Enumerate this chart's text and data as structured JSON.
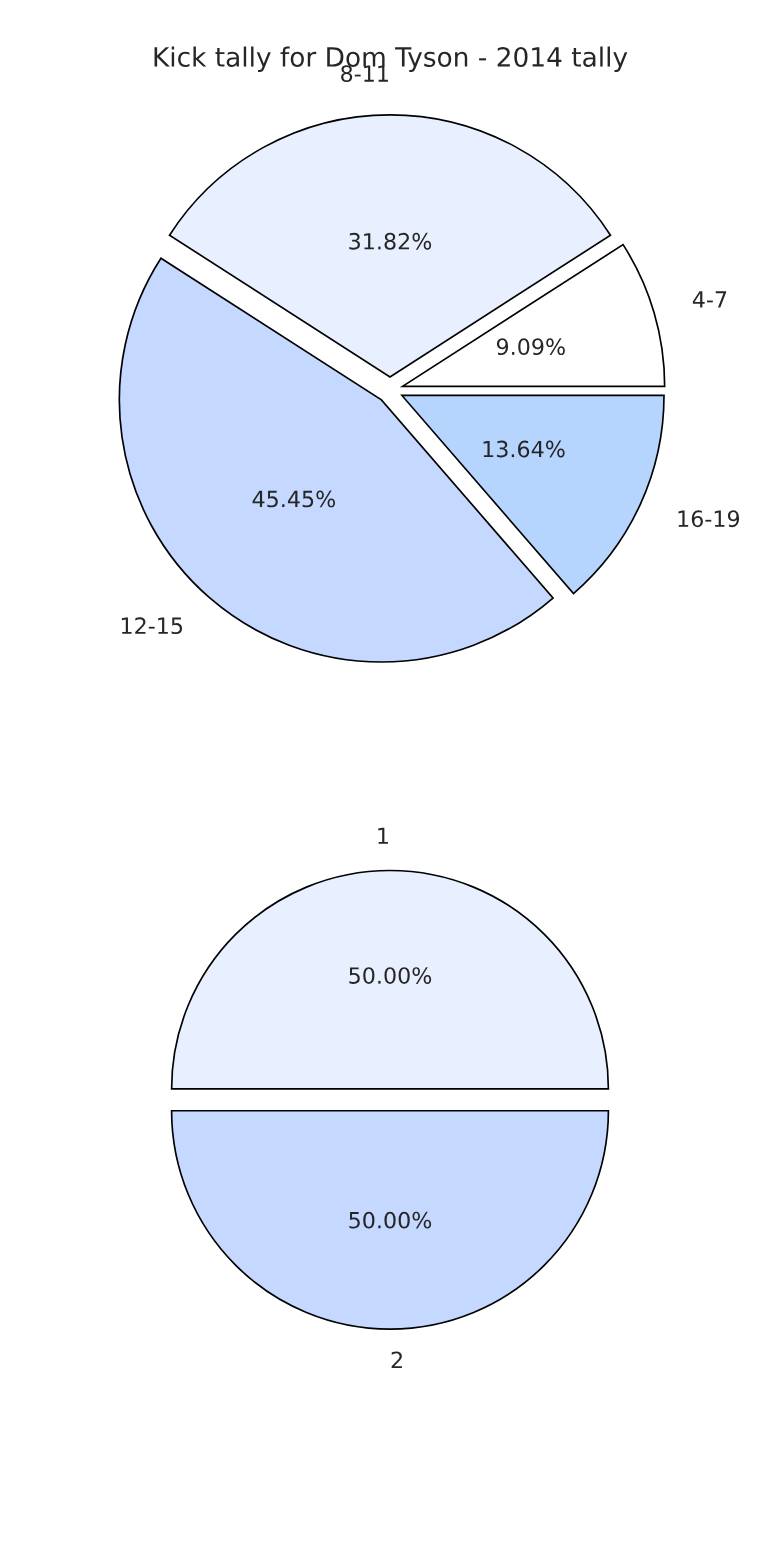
{
  "chart_data": [
    {
      "type": "pie",
      "title": "Kick tally for Dom Tyson - 2014 tally",
      "categories": [
        "4-7",
        "8-11",
        "12-15",
        "16-19"
      ],
      "values": [
        9.09,
        31.82,
        45.45,
        13.64
      ],
      "value_labels": [
        "9.09%",
        "31.82%",
        "45.45%",
        "13.64%"
      ],
      "colors": [
        "#ffffff",
        "#e8f0ff",
        "#c5d8ff",
        "#b5d5ff"
      ],
      "legend": false
    },
    {
      "type": "pie",
      "categories": [
        "1",
        "2"
      ],
      "values": [
        50.0,
        50.0
      ],
      "value_labels": [
        "50.00%",
        "50.00%"
      ],
      "colors": [
        "#e8f0ff",
        "#c5d8ff"
      ],
      "legend": false
    }
  ]
}
